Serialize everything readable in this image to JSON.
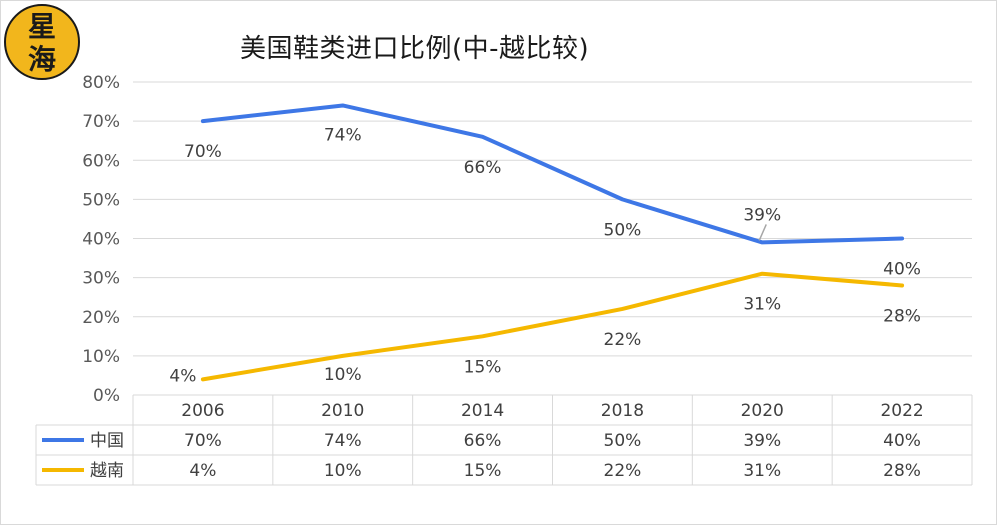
{
  "logo": {
    "chars": [
      "星",
      "海"
    ],
    "bg": "#f2b61c",
    "fg": "#1a1a1a"
  },
  "chart_data": {
    "type": "line",
    "title": "美国鞋类进口比例(中-越比较)",
    "categories": [
      "2006",
      "2010",
      "2014",
      "2018",
      "2020",
      "2022"
    ],
    "series": [
      {
        "name": "中国",
        "color": "#3e77e6",
        "values": [
          70,
          74,
          66,
          50,
          39,
          40
        ],
        "labels": [
          "70%",
          "74%",
          "66%",
          "50%",
          "39%",
          "40%"
        ]
      },
      {
        "name": "越南",
        "color": "#f5b800",
        "values": [
          4,
          10,
          15,
          22,
          31,
          28
        ],
        "labels": [
          "4%",
          "10%",
          "15%",
          "22%",
          "31%",
          "28%"
        ]
      }
    ],
    "y_ticks": [
      "0%",
      "10%",
      "20%",
      "30%",
      "40%",
      "50%",
      "60%",
      "70%",
      "80%"
    ],
    "ylim": [
      0,
      80
    ],
    "grid": true,
    "data_table": true
  }
}
